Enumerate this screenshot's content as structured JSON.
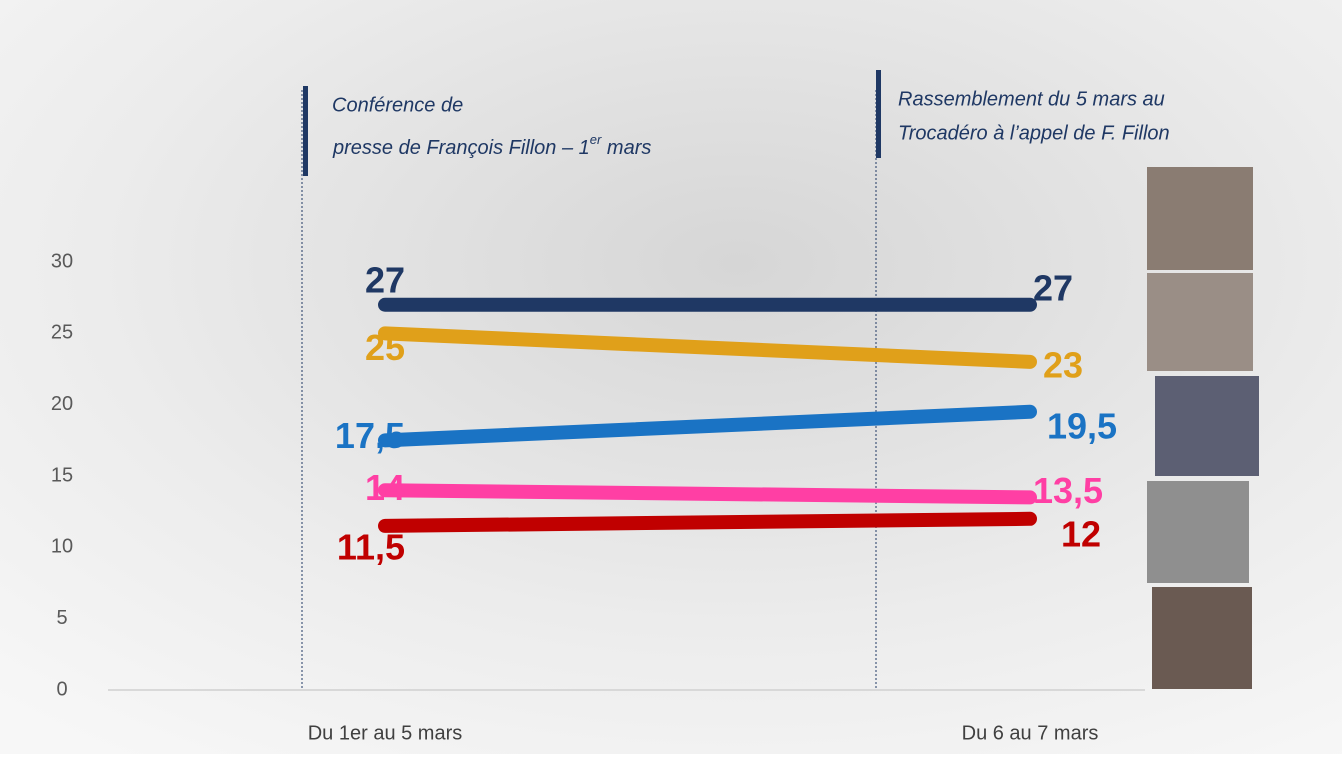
{
  "chart_data": {
    "type": "line",
    "categories": [
      "Du 1er au 5 mars",
      "Du 6 au 7 mars"
    ],
    "series": [
      {
        "color": "#1f3864",
        "values": [
          27,
          27
        ],
        "value_labels": [
          "27",
          "27"
        ]
      },
      {
        "color": "#e0a01a",
        "values": [
          25,
          23
        ],
        "value_labels": [
          "25",
          "23"
        ]
      },
      {
        "color": "#1a73c4",
        "values": [
          17.5,
          19.5
        ],
        "value_labels": [
          "17,5",
          "19,5"
        ]
      },
      {
        "color": "#ff3fa4",
        "values": [
          14,
          13.5
        ],
        "value_labels": [
          "14",
          "13,5"
        ]
      },
      {
        "color": "#c00000",
        "values": [
          11.5,
          12
        ],
        "value_labels": [
          "11,5",
          "12"
        ]
      }
    ],
    "ylim": [
      0,
      30
    ],
    "yticks": [
      0,
      5,
      10,
      15,
      20,
      25,
      30
    ],
    "grid": false,
    "annotations": [
      {
        "lines": [
          "Conférence de",
          "presse de François Fillon – 1"
        ],
        "superscript": "er",
        "suffix": " mars"
      },
      {
        "lines": [
          "Rassemblement du 5 mars au",
          "Trocadéro à l’appel de F. Fillon"
        ]
      }
    ]
  }
}
